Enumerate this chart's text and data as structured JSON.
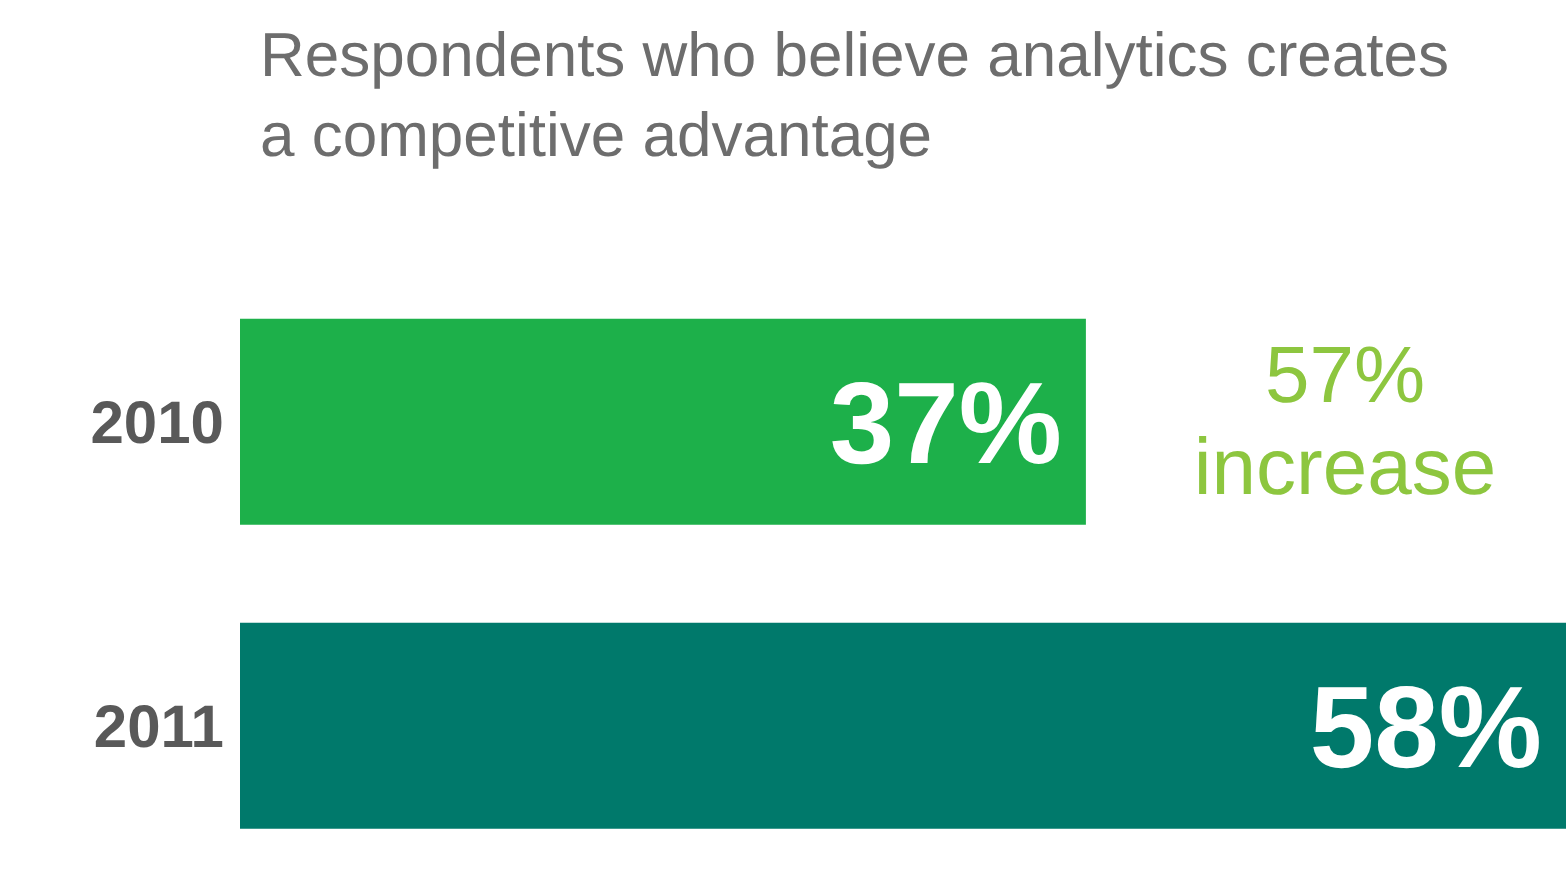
{
  "chart_data": {
    "type": "bar",
    "orientation": "horizontal",
    "title": "Respondents who believe analytics creates a competitive advantage",
    "categories": [
      "2010",
      "2011"
    ],
    "values": [
      37,
      58
    ],
    "colors": [
      "#1db04a",
      "#00796b"
    ],
    "value_labels": [
      "37%",
      "58%"
    ],
    "annotations": [
      "57% increase"
    ]
  }
}
